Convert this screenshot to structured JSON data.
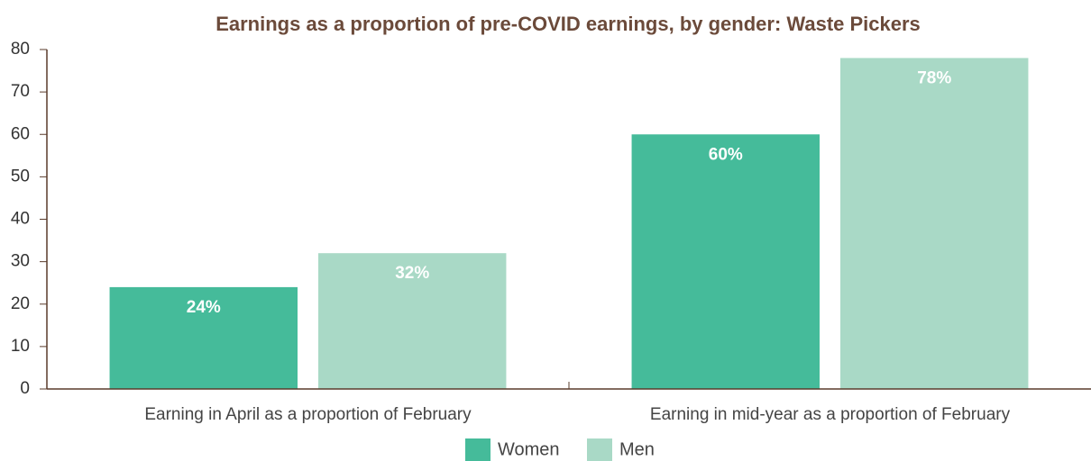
{
  "chart_data": {
    "type": "bar",
    "title": "Earnings as a proportion of pre-COVID earnings, by gender: Waste Pickers",
    "categories": [
      "Earning in April as a proportion of February",
      "Earning in mid-year as a proportion of February"
    ],
    "series": [
      {
        "name": "Women",
        "color": "#45bb9a",
        "values": [
          24,
          60
        ],
        "value_labels": [
          "24%",
          "60%"
        ]
      },
      {
        "name": "Men",
        "color": "#a9d9c6",
        "values": [
          32,
          78
        ],
        "value_labels": [
          "32%",
          "78%"
        ]
      }
    ],
    "ylim": [
      0,
      80
    ],
    "yticks": [
      0,
      10,
      20,
      30,
      40,
      50,
      60,
      70,
      80
    ],
    "grid": false,
    "legend": "bottom"
  }
}
